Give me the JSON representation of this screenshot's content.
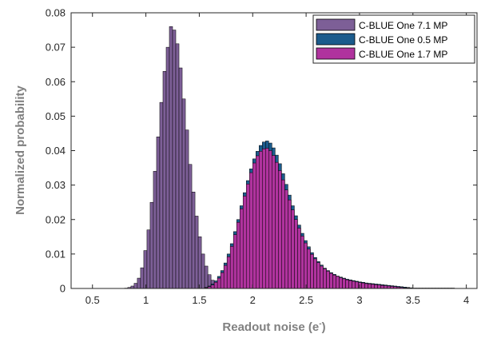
{
  "chart_data": {
    "type": "bar",
    "subtype": "overlaid-histogram",
    "xlabel_main": "Readout noise (e",
    "xlabel_sup": "-",
    "xlabel_end": ")",
    "ylabel": "Normalized probability",
    "xlim": [
      0.3,
      4.1
    ],
    "ylim": [
      0,
      0.08
    ],
    "xticks": [
      0.5,
      1,
      1.5,
      2,
      2.5,
      3,
      3.5,
      4
    ],
    "xtick_labels": [
      "0.5",
      "1",
      "1.5",
      "2",
      "2.5",
      "3",
      "3.5",
      "4"
    ],
    "yticks": [
      0,
      0.01,
      0.02,
      0.03,
      0.04,
      0.05,
      0.06,
      0.07,
      0.08
    ],
    "ytick_labels": [
      "0",
      "0.01",
      "0.02",
      "0.03",
      "0.04",
      "0.05",
      "0.06",
      "0.07",
      "0.08"
    ],
    "bin_width": 0.03,
    "legend_position": "top-right",
    "grid": false,
    "series": [
      {
        "name": "C-BLUE One 7.1 MP",
        "color": "#7d5f97",
        "x_start": 0.8,
        "values": [
          0.0001,
          0.0003,
          0.0007,
          0.0015,
          0.003,
          0.006,
          0.011,
          0.017,
          0.025,
          0.034,
          0.044,
          0.054,
          0.063,
          0.07,
          0.076,
          0.075,
          0.071,
          0.064,
          0.055,
          0.046,
          0.036,
          0.028,
          0.021,
          0.015,
          0.01,
          0.0065,
          0.004,
          0.0024,
          0.0014,
          0.0008,
          0.0004,
          0.0002
        ]
      },
      {
        "name": "C-BLUE One 0.5 MP",
        "color": "#1b5b8c",
        "x_start": 1.55,
        "values": [
          0.0003,
          0.0007,
          0.0013,
          0.0022,
          0.0035,
          0.0052,
          0.0074,
          0.01,
          0.013,
          0.0165,
          0.02,
          0.024,
          0.0278,
          0.0313,
          0.0347,
          0.0376,
          0.0398,
          0.0415,
          0.0425,
          0.0428,
          0.0422,
          0.0408,
          0.0387,
          0.0362,
          0.0333,
          0.0302,
          0.0271,
          0.024,
          0.0211,
          0.0184,
          0.016,
          0.0139,
          0.0121,
          0.0104,
          0.009,
          0.0078,
          0.0068,
          0.0059,
          0.0052,
          0.0046,
          0.0041,
          0.0036,
          0.0033,
          0.003,
          0.0027,
          0.0025,
          0.0023,
          0.0021,
          0.0019,
          0.0018,
          0.0016,
          0.0015,
          0.0014,
          0.0013,
          0.0012,
          0.0011,
          0.001,
          0.0009,
          0.0008,
          0.0007,
          0.0006,
          0.0005,
          0.0004,
          0.0003,
          0.0002,
          0.0001,
          0.0001,
          0.0001,
          0.0001,
          0.0001,
          0.0001,
          0.0001,
          0.0001,
          0.0001,
          0.0001,
          0.0001,
          0.0001,
          0.0001
        ]
      },
      {
        "name": "C-BLUE One 1.7 MP",
        "color": "#b0339e",
        "x_start": 1.55,
        "values": [
          0.0002,
          0.0005,
          0.001,
          0.0018,
          0.003,
          0.0046,
          0.0067,
          0.0092,
          0.0122,
          0.0156,
          0.0192,
          0.0231,
          0.0268,
          0.0303,
          0.0336,
          0.0364,
          0.0385,
          0.0398,
          0.0405,
          0.0407,
          0.04,
          0.0386,
          0.0366,
          0.0342,
          0.0315,
          0.0286,
          0.0257,
          0.0228,
          0.02,
          0.0175,
          0.0152,
          0.0132,
          0.0114,
          0.0099,
          0.0086,
          0.0075,
          0.0065,
          0.0057,
          0.005,
          0.0044,
          0.0039,
          0.0035,
          0.0031,
          0.0028,
          0.0025,
          0.0023,
          0.0021,
          0.0019,
          0.0017,
          0.0016,
          0.0014,
          0.0013,
          0.0012,
          0.0011,
          0.001,
          0.0009,
          0.0008,
          0.0007,
          0.0006,
          0.0005,
          0.0004,
          0.0003,
          0.0002,
          0.0002,
          0.0001,
          0.0001,
          0.0001,
          0.0001,
          0.0001,
          0.0001,
          0.0001,
          0.0001,
          0.0001,
          0.0001,
          0.0001,
          0.0001,
          0.0001,
          0.0001
        ]
      }
    ]
  }
}
